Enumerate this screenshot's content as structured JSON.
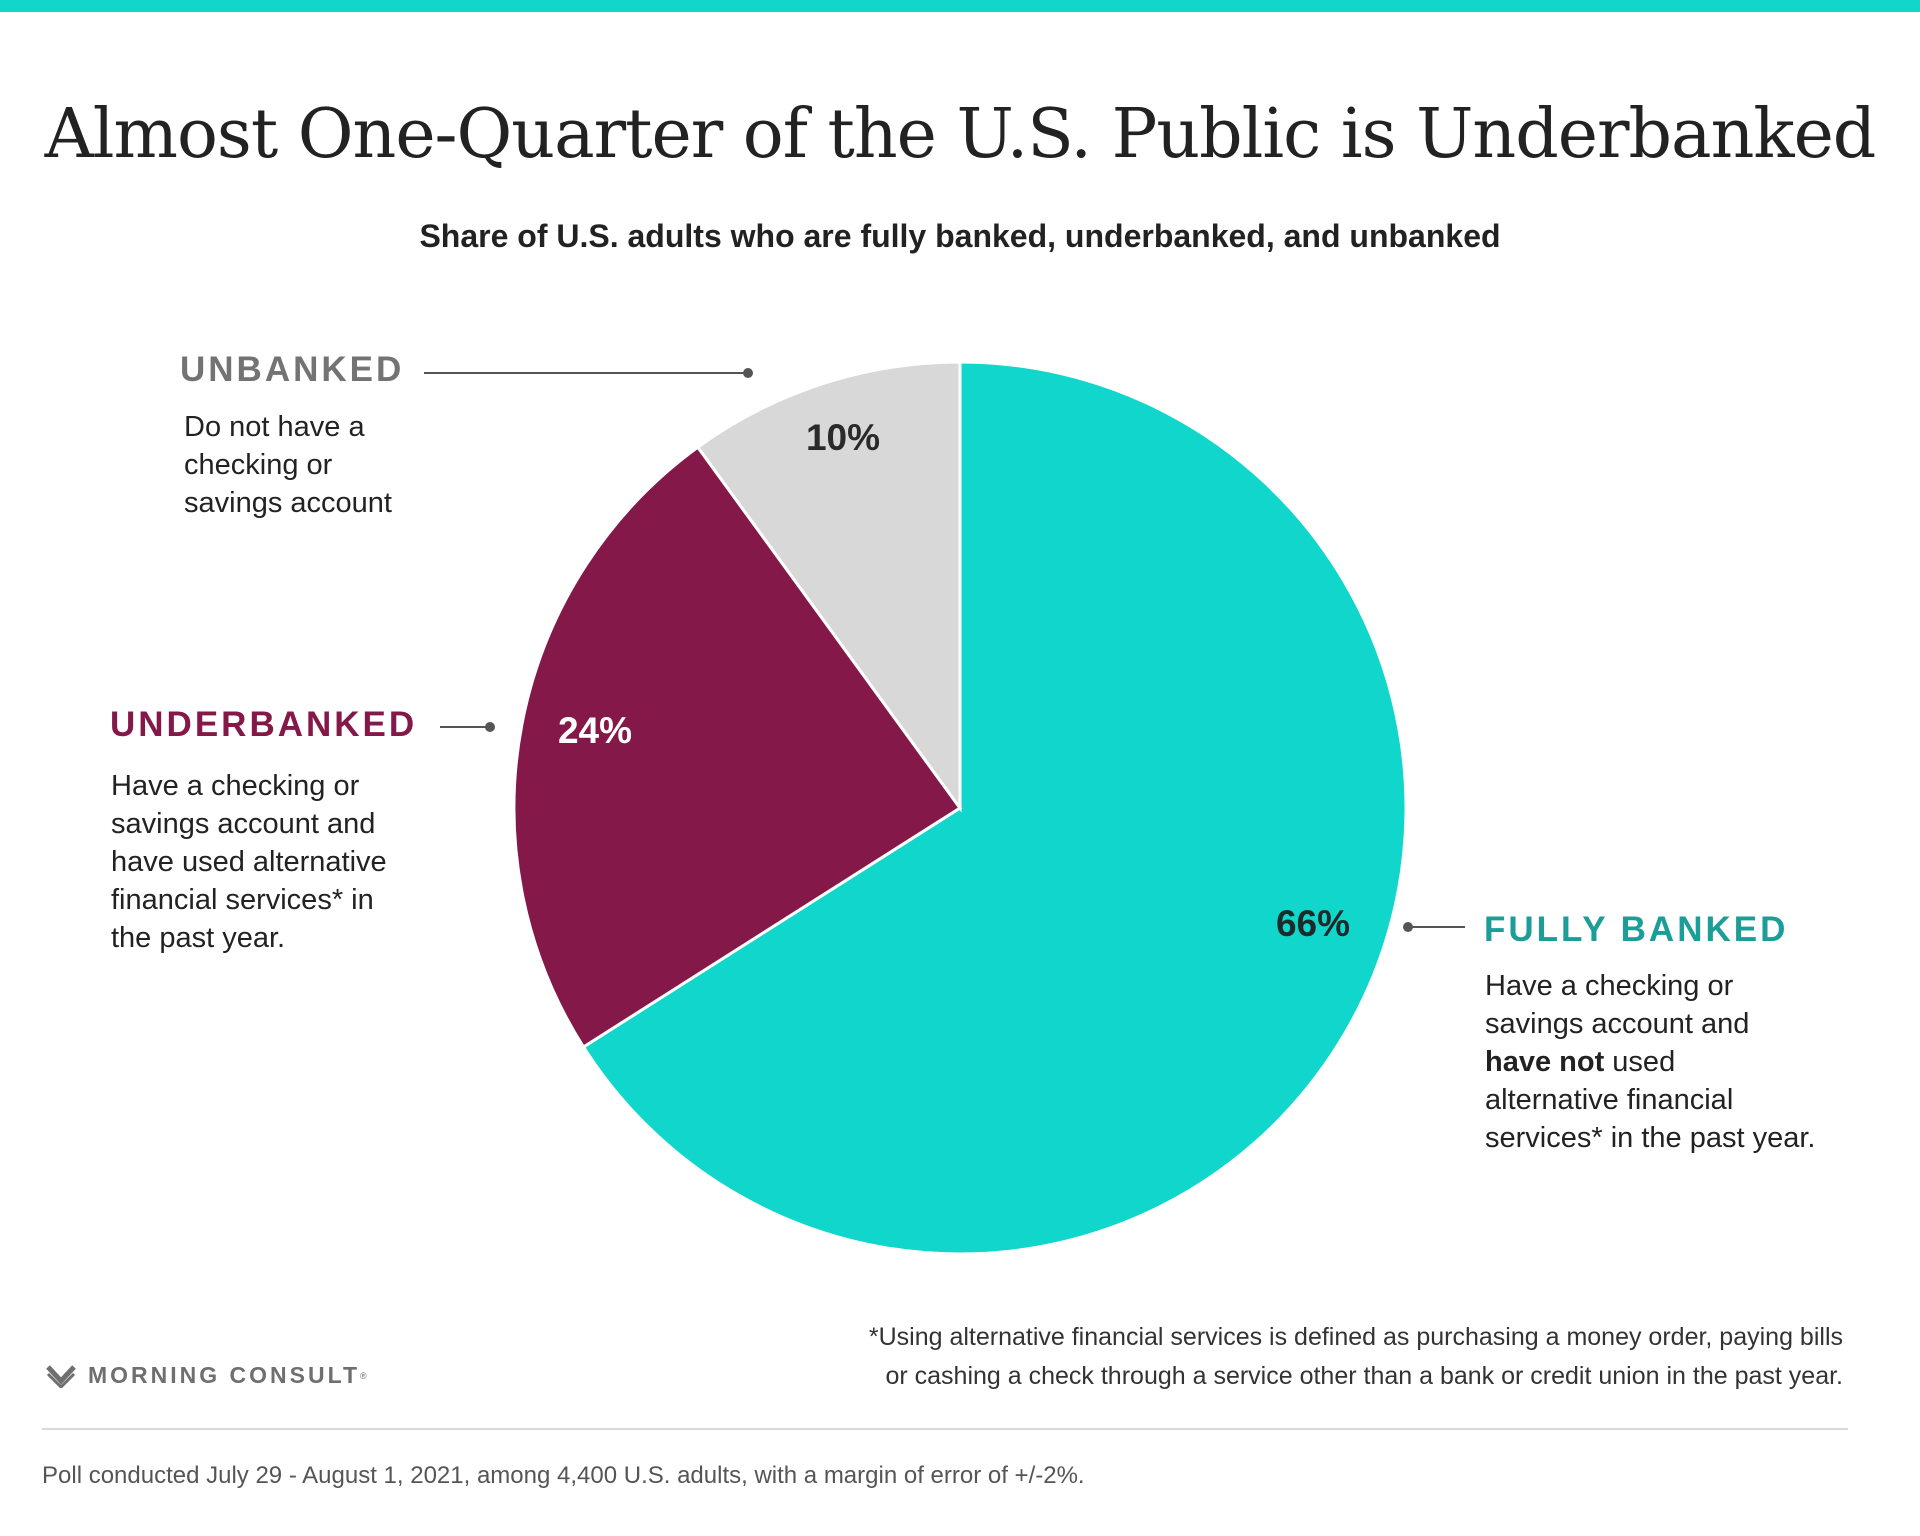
{
  "header": {
    "title": "Almost One-Quarter of the U.S. Public is Underbanked",
    "subtitle": "Share of U.S. adults who are fully banked, underbanked, and unbanked"
  },
  "chart_data": {
    "type": "pie",
    "title": "Almost One-Quarter of the U.S. Public is Underbanked",
    "subtitle": "Share of U.S. adults who are fully banked, underbanked, and unbanked",
    "slices": [
      {
        "key": "fully",
        "label": "FULLY BANKED",
        "value": 66,
        "value_label": "66%",
        "color": "#10d6cc",
        "label_color": "#1a9e97"
      },
      {
        "key": "under",
        "label": "UNDERBANKED",
        "value": 24,
        "value_label": "24%",
        "color": "#841849",
        "label_color": "#841849"
      },
      {
        "key": "un",
        "label": "UNBANKED",
        "value": 10,
        "value_label": "10%",
        "color": "#d8d8d8",
        "label_color": "#737373"
      }
    ],
    "start_angle_deg": 0,
    "direction": "clockwise"
  },
  "descriptions": {
    "unbanked": [
      "Do not have a",
      "checking or",
      "savings account"
    ],
    "underbanked": [
      "Have a checking or",
      "savings account and",
      "have used alternative",
      "financial services* in",
      "the past year."
    ],
    "fully_line1": "Have a checking or",
    "fully_line2": "savings account and",
    "fully_bold": "have not",
    "fully_line3_rest": " used",
    "fully_line4": "alternative financial",
    "fully_line5": "services* in the past year."
  },
  "footnote": {
    "line1": "*Using alternative financial services is defined as purchasing a money order, paying bills",
    "line2": "or cashing a check through a service other than a bank or credit union in the past year."
  },
  "logo": {
    "text": "MORNING CONSULT",
    "icon": "morning-consult-m-icon",
    "mark": "®"
  },
  "source": "Poll conducted July 29 - August 1, 2021, among 4,400 U.S. adults, with a margin of error of +/-2%."
}
